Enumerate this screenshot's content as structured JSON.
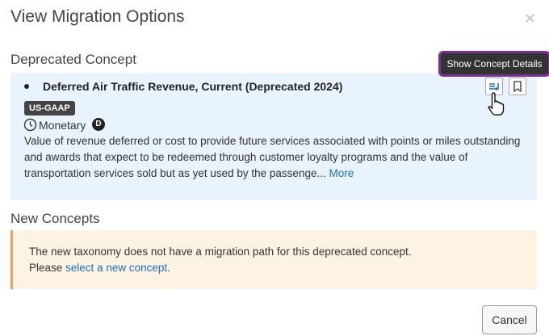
{
  "header": {
    "title": "View Migration Options",
    "close": "×"
  },
  "deprecated": {
    "heading": "Deprecated Concept",
    "tooltip": "Show Concept Details",
    "name": "Deferred Air Traffic Revenue, Current (Deprecated 2024)",
    "badge": "US-GAAP",
    "period_type": "Monetary",
    "balance": "D",
    "description": "Value of revenue deferred or cost to provide future services associated with points or miles outstanding and awards that expect to be redeemed through customer loyalty programs and the value of transportation services sold but as yet used by the passenge...",
    "more": "More"
  },
  "new_concepts": {
    "heading": "New Concepts",
    "notice": "The new taxonomy does not have a migration path for this deprecated concept.",
    "prompt": "Please",
    "link": "select a new concept",
    "end": "."
  },
  "footer": {
    "cancel": "Cancel"
  }
}
